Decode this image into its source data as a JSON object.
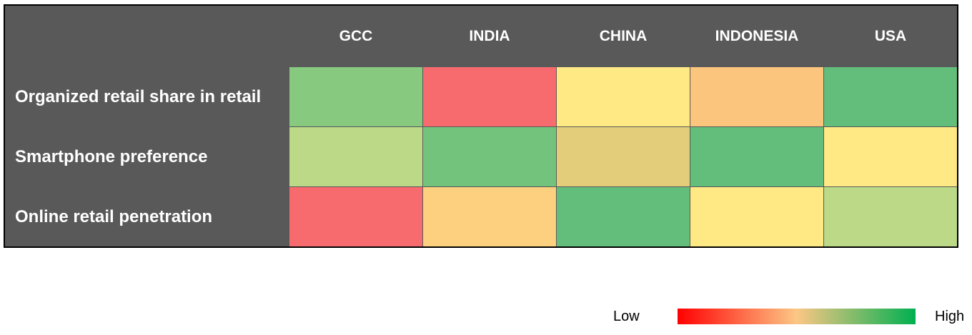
{
  "chart_data": {
    "type": "heatmap",
    "columns": [
      "GCC",
      "INDIA",
      "CHINA",
      "INDONESIA",
      "USA"
    ],
    "rows": [
      {
        "label": "Organized retail share in retail",
        "colors": [
          "#86c97f",
          "#f76b6e",
          "#fee984",
          "#fbc57e",
          "#63bd7b"
        ]
      },
      {
        "label": "Smartphone preference",
        "colors": [
          "#bcd987",
          "#74c37d",
          "#e3cd7b",
          "#63bd7b",
          "#fee984"
        ]
      },
      {
        "label": "Online retail penetration",
        "colors": [
          "#f76b6e",
          "#fdd07f",
          "#63bd7b",
          "#fee984",
          "#bcd987"
        ]
      }
    ],
    "legend": {
      "low_label": "Low",
      "high_label": "High",
      "gradient_colors": [
        "#ff0000",
        "#fcc785",
        "#00b050"
      ]
    }
  }
}
